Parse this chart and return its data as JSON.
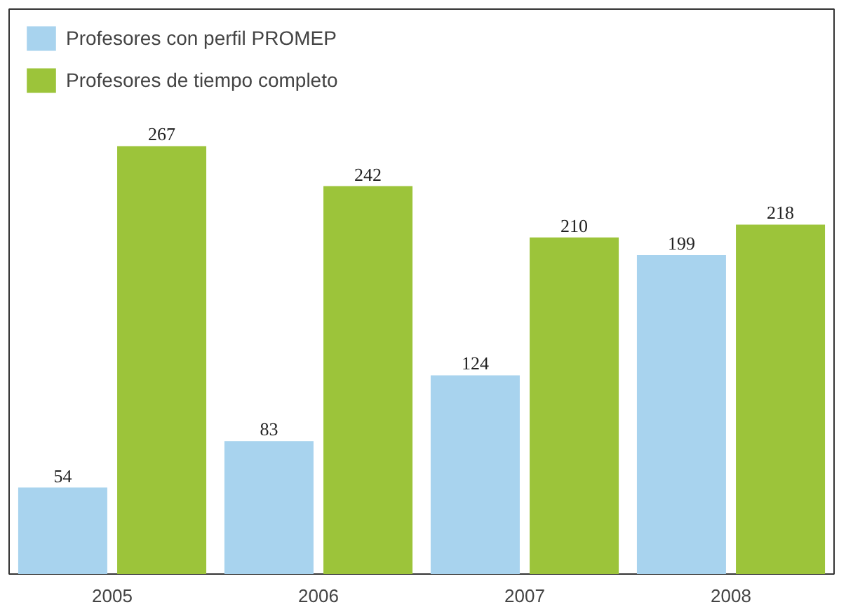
{
  "chart_data": {
    "type": "bar",
    "categories": [
      "2005",
      "2006",
      "2007",
      "2008"
    ],
    "series": [
      {
        "name": "Profesores con perfil PROMEP",
        "color": "#a8d3ee",
        "values": [
          54,
          83,
          124,
          199
        ]
      },
      {
        "name": "Profesores de tiempo completo",
        "color": "#9cc43a",
        "values": [
          267,
          242,
          210,
          218
        ]
      }
    ],
    "data_labels": true,
    "legend": "top left",
    "grid": false
  }
}
